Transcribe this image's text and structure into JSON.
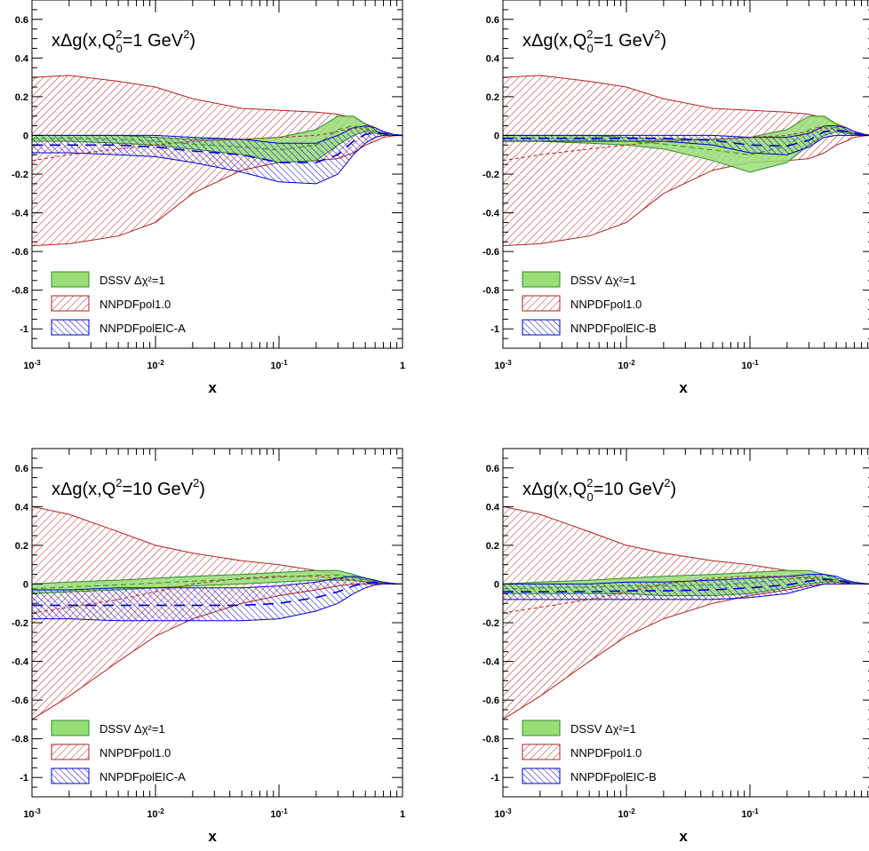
{
  "chart_data": [
    {
      "type": "area",
      "title": "xΔg(x,Q0²=1 GeV²)",
      "title_parts": {
        "pre": "xΔg(x,Q",
        "sup": "2",
        "sub": "0",
        "post": "=1 GeV",
        "post_sup": "2",
        "post_end": ")"
      },
      "xlabel": "x",
      "xscale": "log",
      "xlim": [
        0.001,
        1
      ],
      "ylim": [
        -1.1,
        0.7
      ],
      "x_ticks": [
        {
          "value": 0.001,
          "base": "10",
          "exp": "-3"
        },
        {
          "value": 0.01,
          "base": "10",
          "exp": "-2"
        },
        {
          "value": 0.1,
          "base": "10",
          "exp": "-1"
        },
        {
          "value": 1,
          "base": "1",
          "exp": ""
        }
      ],
      "y_ticks": [
        {
          "value": 0.6,
          "label": "0.6"
        },
        {
          "value": 0.4,
          "label": "0.4"
        },
        {
          "value": 0.2,
          "label": "0.2"
        },
        {
          "value": 0,
          "label": "0"
        },
        {
          "value": -0.2,
          "label": "-0.2"
        },
        {
          "value": -0.4,
          "label": "-0.4"
        },
        {
          "value": -0.6,
          "label": "-0.6"
        },
        {
          "value": -0.8,
          "label": "-0.8"
        },
        {
          "value": -1,
          "label": "-1"
        }
      ],
      "x": [
        0.001,
        0.002,
        0.005,
        0.01,
        0.02,
        0.05,
        0.1,
        0.2,
        0.3,
        0.4,
        0.5,
        0.6,
        0.7,
        0.85,
        1.0
      ],
      "legend_placement": "bottom-left",
      "series": [
        {
          "name": "NNPDFpol1.0",
          "style": "red-hatch",
          "color": "#b22222",
          "fill": "#ffffff",
          "upper": [
            0.3,
            0.31,
            0.28,
            0.25,
            0.19,
            0.14,
            0.13,
            0.12,
            0.11,
            0.09,
            0.06,
            0.04,
            0.02,
            0.005,
            0.0
          ],
          "lower": [
            -0.57,
            -0.56,
            -0.52,
            -0.45,
            -0.3,
            -0.18,
            -0.14,
            -0.13,
            -0.12,
            -0.09,
            -0.05,
            -0.03,
            -0.01,
            -0.002,
            0.0
          ],
          "central": [
            -0.13,
            -0.1,
            -0.07,
            -0.05,
            -0.03,
            -0.02,
            -0.01,
            0.0,
            0.02,
            0.04,
            0.03,
            0.02,
            0.01,
            0.002,
            0.0
          ]
        },
        {
          "name": "DSSV Δχ²=1",
          "style": "green-solid",
          "color": "#2e8b2e",
          "fill": "#99dd77",
          "upper": [
            0.0,
            0.0,
            0.0,
            -0.01,
            -0.02,
            -0.02,
            -0.01,
            0.03,
            0.1,
            0.1,
            0.06,
            0.03,
            0.01,
            0.003,
            0.0
          ],
          "lower": [
            -0.03,
            -0.03,
            -0.04,
            -0.05,
            -0.07,
            -0.1,
            -0.14,
            -0.13,
            -0.05,
            0.0,
            0.02,
            0.01,
            0.005,
            0.001,
            0.0
          ],
          "central": [
            -0.015,
            -0.015,
            -0.02,
            -0.03,
            -0.045,
            -0.06,
            -0.075,
            -0.05,
            0.03,
            0.05,
            0.04,
            0.02,
            0.008,
            0.002,
            0.0
          ]
        },
        {
          "name": "NNPDFpolEIC-A",
          "style": "blue-hatch",
          "color": "#0000cc",
          "fill": "#ffffff",
          "upper": [
            0.0,
            0.0,
            0.0,
            0.0,
            -0.01,
            -0.02,
            -0.04,
            -0.04,
            0.0,
            0.04,
            0.05,
            0.04,
            0.02,
            0.005,
            0.0
          ],
          "lower": [
            -0.09,
            -0.09,
            -0.1,
            -0.11,
            -0.14,
            -0.19,
            -0.24,
            -0.25,
            -0.2,
            -0.1,
            -0.04,
            -0.01,
            0.0,
            0.0,
            0.0
          ],
          "central": [
            -0.05,
            -0.05,
            -0.05,
            -0.06,
            -0.08,
            -0.1,
            -0.14,
            -0.14,
            -0.1,
            -0.03,
            0.005,
            0.015,
            0.01,
            0.002,
            0.0
          ]
        }
      ]
    },
    {
      "type": "area",
      "title": "xΔg(x,Q0²=1 GeV²)",
      "title_parts": {
        "pre": "xΔg(x,Q",
        "sup": "2",
        "sub": "0",
        "post": "=1 GeV",
        "post_sup": "2",
        "post_end": ")"
      },
      "xlabel": "x",
      "xscale": "log",
      "xlim": [
        0.001,
        1
      ],
      "ylim": [
        -1.1,
        0.7
      ],
      "x_ticks": [
        {
          "value": 0.001,
          "base": "10",
          "exp": "-3"
        },
        {
          "value": 0.01,
          "base": "10",
          "exp": "-2"
        },
        {
          "value": 0.1,
          "base": "10",
          "exp": "-1"
        },
        {
          "value": 1,
          "base": "1",
          "exp": ""
        }
      ],
      "y_ticks": [
        {
          "value": 0.6,
          "label": "0.6"
        },
        {
          "value": 0.4,
          "label": "0.4"
        },
        {
          "value": 0.2,
          "label": "0.2"
        },
        {
          "value": 0,
          "label": "0"
        },
        {
          "value": -0.2,
          "label": "-0.2"
        },
        {
          "value": -0.4,
          "label": "-0.4"
        },
        {
          "value": -0.6,
          "label": "-0.6"
        },
        {
          "value": -0.8,
          "label": "-0.8"
        },
        {
          "value": -1,
          "label": "-1"
        }
      ],
      "x": [
        0.001,
        0.002,
        0.005,
        0.01,
        0.02,
        0.05,
        0.1,
        0.2,
        0.3,
        0.4,
        0.5,
        0.6,
        0.7,
        0.85,
        1.0
      ],
      "legend_placement": "bottom-left",
      "series": [
        {
          "name": "NNPDFpol1.0",
          "style": "red-hatch",
          "color": "#b22222",
          "fill": "#ffffff",
          "upper": [
            0.3,
            0.31,
            0.28,
            0.25,
            0.19,
            0.14,
            0.13,
            0.12,
            0.11,
            0.09,
            0.06,
            0.04,
            0.02,
            0.005,
            0.0
          ],
          "lower": [
            -0.57,
            -0.56,
            -0.52,
            -0.45,
            -0.3,
            -0.18,
            -0.14,
            -0.13,
            -0.12,
            -0.09,
            -0.05,
            -0.03,
            -0.01,
            -0.002,
            0.0
          ],
          "central": [
            -0.13,
            -0.1,
            -0.07,
            -0.05,
            -0.03,
            -0.02,
            -0.01,
            0.0,
            0.02,
            0.04,
            0.03,
            0.02,
            0.01,
            0.002,
            0.0
          ]
        },
        {
          "name": "DSSV Δχ²=1",
          "style": "green-solid",
          "color": "#2e8b2e",
          "fill": "#99dd77",
          "upper": [
            0.0,
            0.0,
            0.0,
            -0.01,
            -0.02,
            -0.02,
            -0.01,
            0.03,
            0.1,
            0.1,
            0.06,
            0.03,
            0.01,
            0.003,
            0.0
          ],
          "lower": [
            -0.03,
            -0.03,
            -0.04,
            -0.05,
            -0.07,
            -0.13,
            -0.19,
            -0.14,
            -0.05,
            0.0,
            0.02,
            0.01,
            0.005,
            0.001,
            0.0
          ],
          "central": [
            -0.015,
            -0.015,
            -0.02,
            -0.03,
            -0.045,
            -0.075,
            -0.1,
            -0.055,
            0.03,
            0.05,
            0.04,
            0.02,
            0.008,
            0.002,
            0.0
          ]
        },
        {
          "name": "NNPDFpolEIC-B",
          "style": "blue-hatch",
          "color": "#0000cc",
          "fill": "#ffffff",
          "upper": [
            0.0,
            0.0,
            0.0,
            0.0,
            0.0,
            0.0,
            -0.01,
            -0.01,
            0.01,
            0.05,
            0.05,
            0.04,
            0.02,
            0.005,
            0.0
          ],
          "lower": [
            -0.03,
            -0.03,
            -0.03,
            -0.03,
            -0.03,
            -0.05,
            -0.09,
            -0.1,
            -0.06,
            -0.01,
            0.0,
            0.0,
            0.0,
            0.0,
            0.0
          ],
          "central": [
            -0.015,
            -0.015,
            -0.015,
            -0.015,
            -0.015,
            -0.025,
            -0.05,
            -0.055,
            -0.025,
            0.02,
            0.025,
            0.02,
            0.01,
            0.002,
            0.0
          ]
        }
      ]
    },
    {
      "type": "area",
      "title": "xΔg(x,Q²=10 GeV²)",
      "title_parts": {
        "pre": "xΔg(x,Q",
        "sup": "2",
        "sub": "",
        "post": "=10 GeV",
        "post_sup": "2",
        "post_end": ")"
      },
      "xlabel": "x",
      "xscale": "log",
      "xlim": [
        0.001,
        1
      ],
      "ylim": [
        -1.1,
        0.7
      ],
      "x_ticks": [
        {
          "value": 0.001,
          "base": "10",
          "exp": "-3"
        },
        {
          "value": 0.01,
          "base": "10",
          "exp": "-2"
        },
        {
          "value": 0.1,
          "base": "10",
          "exp": "-1"
        },
        {
          "value": 1,
          "base": "1",
          "exp": ""
        }
      ],
      "y_ticks": [
        {
          "value": 0.6,
          "label": "0.6"
        },
        {
          "value": 0.4,
          "label": "0.4"
        },
        {
          "value": 0.2,
          "label": "0.2"
        },
        {
          "value": 0,
          "label": "0"
        },
        {
          "value": -0.2,
          "label": "-0.2"
        },
        {
          "value": -0.4,
          "label": "-0.4"
        },
        {
          "value": -0.6,
          "label": "-0.6"
        },
        {
          "value": -0.8,
          "label": "-0.8"
        },
        {
          "value": -1,
          "label": "-1"
        }
      ],
      "x": [
        0.001,
        0.002,
        0.005,
        0.01,
        0.02,
        0.05,
        0.1,
        0.2,
        0.3,
        0.4,
        0.5,
        0.6,
        0.7,
        0.85,
        1.0
      ],
      "legend_placement": "bottom-left",
      "series": [
        {
          "name": "NNPDFpol1.0",
          "style": "red-hatch",
          "color": "#b22222",
          "fill": "#ffffff",
          "upper": [
            0.4,
            0.36,
            0.27,
            0.2,
            0.16,
            0.12,
            0.1,
            0.07,
            0.05,
            0.03,
            0.02,
            0.01,
            0.005,
            0.001,
            0.0
          ],
          "lower": [
            -0.7,
            -0.58,
            -0.4,
            -0.27,
            -0.18,
            -0.1,
            -0.06,
            -0.03,
            -0.01,
            0.0,
            0.0,
            0.0,
            0.0,
            0.0,
            0.0
          ],
          "central": [
            -0.15,
            -0.12,
            -0.08,
            -0.04,
            0.0,
            0.03,
            0.04,
            0.04,
            0.03,
            0.02,
            0.01,
            0.005,
            0.002,
            0.0,
            0.0
          ]
        },
        {
          "name": "DSSV Δχ²=1",
          "style": "green-solid",
          "color": "#2e8b2e",
          "fill": "#99dd77",
          "upper": [
            0.0,
            0.01,
            0.02,
            0.03,
            0.04,
            0.05,
            0.06,
            0.07,
            0.07,
            0.05,
            0.03,
            0.015,
            0.005,
            0.001,
            0.0
          ],
          "lower": [
            -0.05,
            -0.04,
            -0.03,
            -0.02,
            -0.01,
            0.0,
            0.01,
            0.02,
            0.02,
            0.02,
            0.01,
            0.005,
            0.002,
            0.0,
            0.0
          ],
          "central": [
            -0.025,
            -0.015,
            -0.005,
            0.005,
            0.015,
            0.025,
            0.035,
            0.045,
            0.045,
            0.035,
            0.02,
            0.01,
            0.003,
            0.0,
            0.0
          ]
        },
        {
          "name": "NNPDFpolEIC-A",
          "style": "blue-hatch",
          "color": "#0000cc",
          "fill": "#ffffff",
          "upper": [
            -0.03,
            -0.03,
            -0.02,
            -0.02,
            -0.02,
            -0.02,
            -0.01,
            0.01,
            0.03,
            0.04,
            0.03,
            0.02,
            0.01,
            0.002,
            0.0
          ],
          "lower": [
            -0.18,
            -0.18,
            -0.19,
            -0.19,
            -0.19,
            -0.19,
            -0.18,
            -0.14,
            -0.1,
            -0.05,
            -0.02,
            -0.005,
            0.0,
            0.0,
            0.0
          ],
          "central": [
            -0.11,
            -0.11,
            -0.11,
            -0.11,
            -0.11,
            -0.11,
            -0.1,
            -0.07,
            -0.04,
            -0.01,
            0.005,
            0.008,
            0.005,
            0.001,
            0.0
          ]
        }
      ]
    },
    {
      "type": "area",
      "title": "xΔg(x,Q0²=10 GeV²)",
      "title_parts": {
        "pre": "xΔg(x,Q",
        "sup": "2",
        "sub": "0",
        "post": "=10 GeV",
        "post_sup": "2",
        "post_end": ")"
      },
      "xlabel": "x",
      "xscale": "log",
      "xlim": [
        0.001,
        1
      ],
      "ylim": [
        -1.1,
        0.7
      ],
      "x_ticks": [
        {
          "value": 0.001,
          "base": "10",
          "exp": "-3"
        },
        {
          "value": 0.01,
          "base": "10",
          "exp": "-2"
        },
        {
          "value": 0.1,
          "base": "10",
          "exp": "-1"
        },
        {
          "value": 1,
          "base": "1",
          "exp": ""
        }
      ],
      "y_ticks": [
        {
          "value": 0.6,
          "label": "0.6"
        },
        {
          "value": 0.4,
          "label": "0.4"
        },
        {
          "value": 0.2,
          "label": "0.2"
        },
        {
          "value": 0,
          "label": "0"
        },
        {
          "value": -0.2,
          "label": "-0.2"
        },
        {
          "value": -0.4,
          "label": "-0.4"
        },
        {
          "value": -0.6,
          "label": "-0.6"
        },
        {
          "value": -0.8,
          "label": "-0.8"
        },
        {
          "value": -1,
          "label": "-1"
        }
      ],
      "x": [
        0.001,
        0.002,
        0.005,
        0.01,
        0.02,
        0.05,
        0.1,
        0.2,
        0.3,
        0.4,
        0.5,
        0.6,
        0.7,
        0.85,
        1.0
      ],
      "legend_placement": "bottom-left",
      "series": [
        {
          "name": "NNPDFpol1.0",
          "style": "red-hatch",
          "color": "#b22222",
          "fill": "#ffffff",
          "upper": [
            0.4,
            0.36,
            0.27,
            0.2,
            0.16,
            0.12,
            0.1,
            0.07,
            0.05,
            0.03,
            0.02,
            0.01,
            0.005,
            0.001,
            0.0
          ],
          "lower": [
            -0.7,
            -0.58,
            -0.4,
            -0.27,
            -0.18,
            -0.1,
            -0.06,
            -0.03,
            -0.01,
            0.0,
            0.0,
            0.0,
            0.0,
            0.0,
            0.0
          ],
          "central": [
            -0.15,
            -0.12,
            -0.08,
            -0.04,
            0.0,
            0.03,
            0.04,
            0.04,
            0.03,
            0.02,
            0.01,
            0.005,
            0.002,
            0.0,
            0.0
          ]
        },
        {
          "name": "DSSV Δχ²=1",
          "style": "green-solid",
          "color": "#2e8b2e",
          "fill": "#99dd77",
          "upper": [
            0.0,
            0.01,
            0.02,
            0.03,
            0.04,
            0.05,
            0.06,
            0.07,
            0.07,
            0.05,
            0.03,
            0.015,
            0.005,
            0.001,
            0.0
          ],
          "lower": [
            -0.05,
            -0.05,
            -0.05,
            -0.05,
            -0.06,
            -0.06,
            -0.05,
            -0.02,
            0.0,
            0.01,
            0.01,
            0.005,
            0.002,
            0.0,
            0.0
          ],
          "central": [
            -0.025,
            -0.02,
            -0.015,
            -0.01,
            -0.01,
            -0.005,
            0.005,
            0.025,
            0.035,
            0.03,
            0.02,
            0.01,
            0.003,
            0.0,
            0.0
          ]
        },
        {
          "name": "NNPDFpolEIC-B",
          "style": "blue-hatch",
          "color": "#0000cc",
          "fill": "#ffffff",
          "upper": [
            0.0,
            0.0,
            0.0,
            0.01,
            0.01,
            0.02,
            0.03,
            0.04,
            0.05,
            0.05,
            0.04,
            0.02,
            0.01,
            0.002,
            0.0
          ],
          "lower": [
            -0.08,
            -0.08,
            -0.08,
            -0.08,
            -0.08,
            -0.08,
            -0.07,
            -0.05,
            -0.02,
            0.0,
            0.0,
            0.0,
            0.0,
            0.0,
            0.0
          ],
          "central": [
            -0.04,
            -0.04,
            -0.04,
            -0.035,
            -0.035,
            -0.03,
            -0.02,
            -0.005,
            0.015,
            0.025,
            0.02,
            0.01,
            0.005,
            0.001,
            0.0
          ]
        }
      ]
    }
  ]
}
